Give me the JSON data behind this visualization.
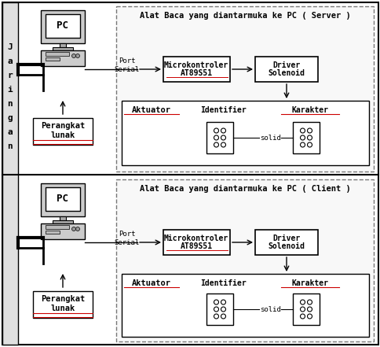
{
  "outer_bg": "#ffffff",
  "title_server": "Alat Baca yang diantarmuka ke PC ( Server )",
  "title_client": "Alat Baca yang diantarmuka ke PC ( Client )",
  "label_jaringan": [
    "J",
    "a",
    "r",
    "i",
    "n",
    "g",
    "a",
    "n"
  ],
  "label_port_serial": "Port\nSerial",
  "label_mikro_line1": "Microkontroler",
  "label_mikro_line2": "AT89S51",
  "label_driver_line1": "Driver",
  "label_driver_line2": "Solenoid",
  "label_perangkat_line1": "Perangkat",
  "label_perangkat_line2": "lunak",
  "label_pc": "PC",
  "label_aktuator": "Aktuator",
  "label_identifier": "Identifier",
  "label_karakter": "Karakter",
  "label_solid": "solid",
  "red_underline": "#cc0000",
  "dash_color": "#888888",
  "light_fill": "#f0f0f0"
}
